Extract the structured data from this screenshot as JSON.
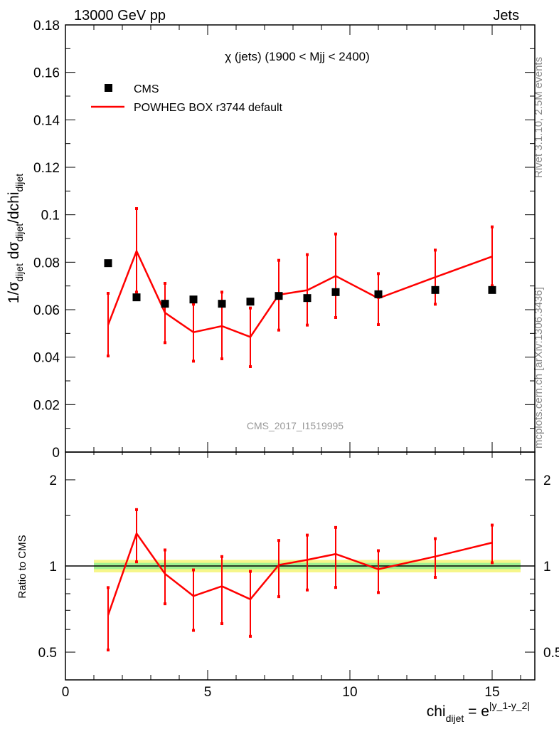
{
  "header": {
    "left": "13000 GeV pp",
    "right": "Jets"
  },
  "side": {
    "rivet": "Rivet 3.1.10,  2.5M events",
    "mcplots": "mcplots.cern.ch [arXiv:1306.3436]"
  },
  "watermark": "CMS_2017_I1519995",
  "chart_data": {
    "type": "scatter",
    "title": "χ (jets) (1900 < Mjj < 2400)",
    "ylabel": {
      "prefix": "1/σ",
      "s1": "dijet",
      "mid": " dσ",
      "s2": "dijet",
      "end": "/dchi",
      "s3": "dijet"
    },
    "xlabel": {
      "base": "chi",
      "sub": "dijet",
      "eq": " = e",
      "sup": "|y_1-y_2|"
    },
    "ratio_ylabel": "Ratio to CMS",
    "xlim": [
      0,
      16.5
    ],
    "ylim": [
      0,
      0.18
    ],
    "ratio_ylim": [
      0.4,
      2.5
    ],
    "ratio_scale": "log",
    "x_ticks": [
      "0",
      "5",
      "10",
      "15"
    ],
    "y_ticks": [
      "0",
      "0.02",
      "0.04",
      "0.06",
      "0.08",
      "0.1",
      "0.12",
      "0.14",
      "0.16",
      "0.18"
    ],
    "ratio_ticks": [
      "0.5",
      "1",
      "2"
    ],
    "legend": {
      "placement": "top-left",
      "entries": [
        "CMS",
        "POWHEG BOX r3744 default"
      ]
    },
    "x": [
      1.5,
      2.5,
      3.5,
      4.5,
      5.5,
      6.5,
      7.5,
      8.5,
      9.5,
      11,
      13,
      15
    ],
    "bin_edges": [
      1,
      2,
      3,
      4,
      5,
      6,
      7,
      8,
      9,
      10,
      12,
      14,
      16
    ],
    "series": [
      {
        "name": "CMS",
        "color": "#000000",
        "values": [
          0.0796,
          0.0652,
          0.0625,
          0.0643,
          0.0625,
          0.0634,
          0.0658,
          0.0649,
          0.0674,
          0.0665,
          0.0683,
          0.0683
        ]
      },
      {
        "name": "POWHEG BOX r3744 default",
        "color": "#ff0000",
        "values": [
          0.0536,
          0.0847,
          0.0587,
          0.0505,
          0.0531,
          0.0485,
          0.0663,
          0.0682,
          0.0742,
          0.0648,
          0.0737,
          0.0824
        ],
        "err_up": [
          0.0669,
          0.1026,
          0.0711,
          0.0623,
          0.0674,
          0.0607,
          0.0808,
          0.0832,
          0.0919,
          0.0752,
          0.0851,
          0.0949
        ],
        "err_down": [
          0.0405,
          0.0674,
          0.0461,
          0.0383,
          0.0393,
          0.036,
          0.0514,
          0.0535,
          0.0567,
          0.0537,
          0.0623,
          0.0701
        ]
      }
    ],
    "cms_band": {
      "stat_frac": 0.025,
      "total_frac": 0.05,
      "inner_color": "#a0f090",
      "outer_color": "#f6f68a"
    }
  }
}
